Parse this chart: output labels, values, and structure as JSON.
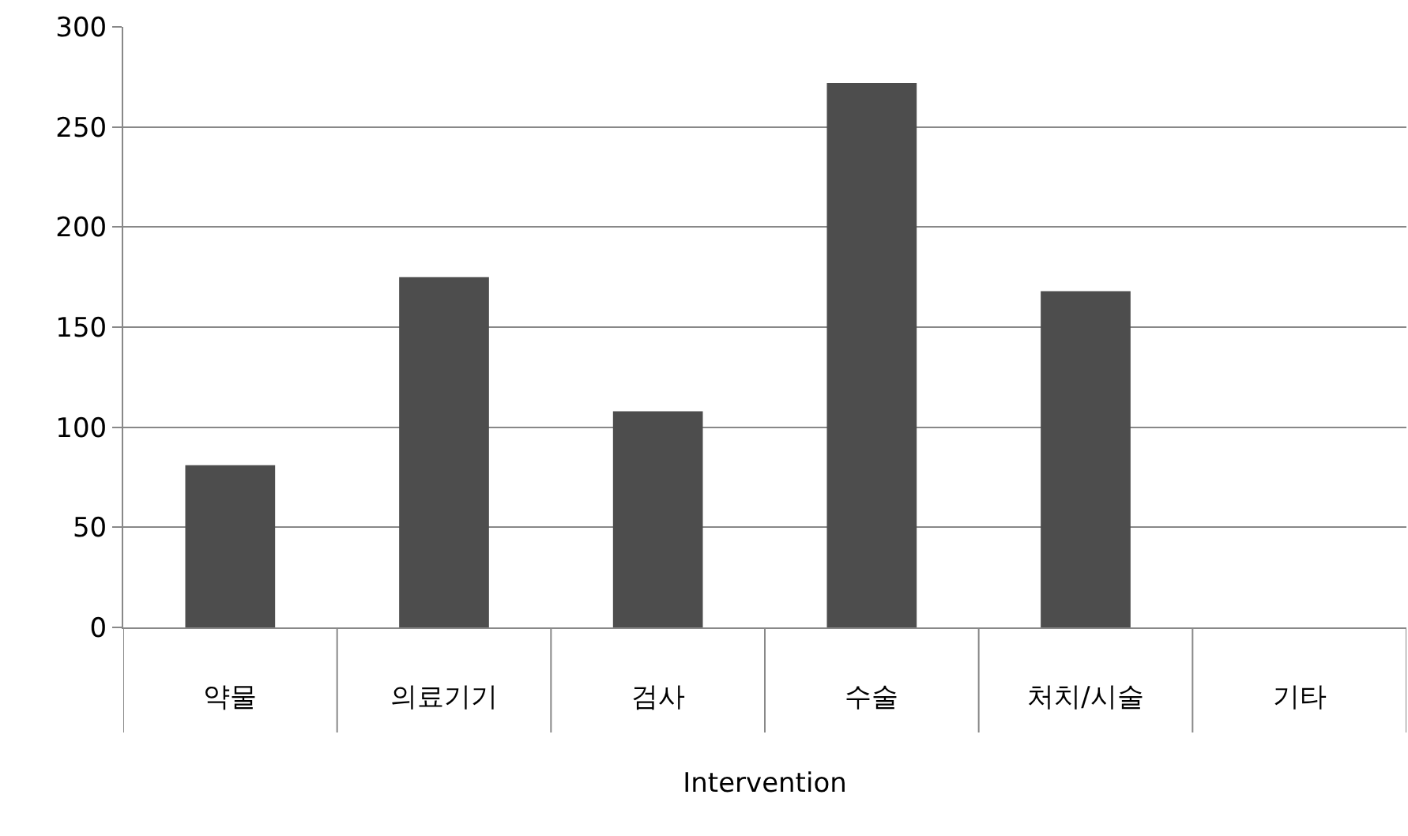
{
  "chart_data": {
    "type": "bar",
    "xlabel": "Intervention",
    "categories": [
      "약물",
      "의료기기",
      "검사",
      "수술",
      "처치/시술",
      "기타"
    ],
    "values": [
      81,
      175,
      108,
      272,
      168,
      0
    ],
    "color": "#4d4d4d",
    "ylim": [
      0,
      300
    ],
    "yticks": [
      0,
      50,
      100,
      150,
      200,
      250,
      300
    ],
    "grid": "y"
  }
}
